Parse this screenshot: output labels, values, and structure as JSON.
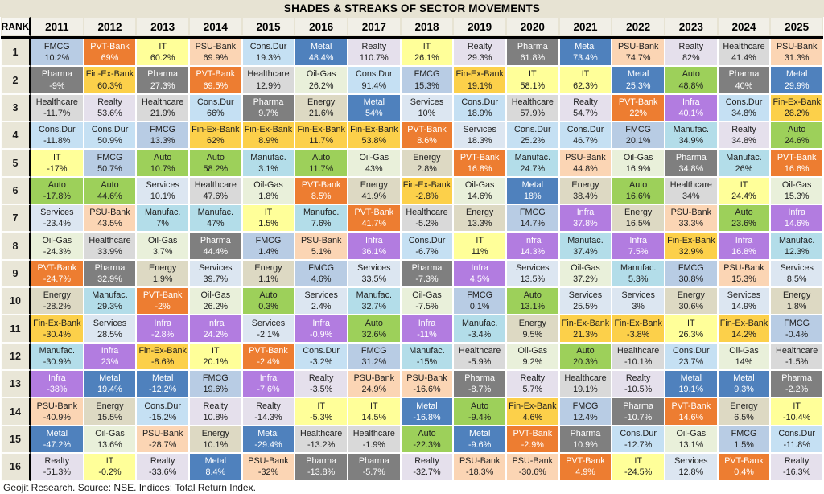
{
  "title": "SHADES & STREAKS OF SECTOR MOVEMENTS",
  "footer": "Geojit Research. Source: NSE. Indices: Total Return Index.",
  "chart_data": {
    "type": "heatmap",
    "description": "Periodic-table style ranking of Indian sector total returns by calendar year; rank 1 (best) to 16 (worst).",
    "rank_header": "RANK",
    "years": [
      "2011",
      "2012",
      "2013",
      "2014",
      "2015",
      "2016",
      "2017",
      "2018",
      "2019",
      "2020",
      "2021",
      "2022",
      "2023",
      "2024",
      "2025"
    ],
    "sector_colors": {
      "FMCG": {
        "bg": "#b8cce4",
        "fg": "#212121"
      },
      "PVT-Bank": {
        "bg": "#ed7d31",
        "fg": "#ffffff"
      },
      "IT": {
        "bg": "#ffff99",
        "fg": "#212121"
      },
      "PSU-Bank": {
        "bg": "#fbd5b4",
        "fg": "#212121"
      },
      "Cons.Dur": {
        "bg": "#c5e0f3",
        "fg": "#212121"
      },
      "Metal": {
        "bg": "#4f81bd",
        "fg": "#ffffff"
      },
      "Realty": {
        "bg": "#e5e0ec",
        "fg": "#212121"
      },
      "Pharma": {
        "bg": "#7f7f7f",
        "fg": "#ffffff"
      },
      "Healthcare": {
        "bg": "#d9d9d9",
        "fg": "#212121"
      },
      "Services": {
        "bg": "#dce6f1",
        "fg": "#212121"
      },
      "Energy": {
        "bg": "#ddd9c3",
        "fg": "#212121"
      },
      "Auto": {
        "bg": "#9dd05a",
        "fg": "#212121"
      },
      "Oil-Gas": {
        "bg": "#e9f0da",
        "fg": "#212121"
      },
      "Fin-Ex-Bank": {
        "bg": "#fcd04a",
        "fg": "#212121"
      },
      "Manufac.": {
        "bg": "#b3dde9",
        "fg": "#212121"
      },
      "Infra": {
        "bg": "#b27ce0",
        "fg": "#ffffff"
      }
    },
    "rows": [
      {
        "rank": "1",
        "cells": [
          [
            "FMCG",
            "10.2%"
          ],
          [
            "PVT-Bank",
            "69%"
          ],
          [
            "IT",
            "60.2%"
          ],
          [
            "PSU-Bank",
            "69.9%"
          ],
          [
            "Cons.Dur",
            "19.3%"
          ],
          [
            "Metal",
            "48.4%"
          ],
          [
            "Realty",
            "110.7%"
          ],
          [
            "IT",
            "26.1%"
          ],
          [
            "Realty",
            "29.3%"
          ],
          [
            "Pharma",
            "61.8%"
          ],
          [
            "Metal",
            "73.4%"
          ],
          [
            "PSU-Bank",
            "74.7%"
          ],
          [
            "Realty",
            "82%"
          ],
          [
            "Healthcare",
            "41.4%"
          ],
          [
            "PSU-Bank",
            "31.3%"
          ]
        ]
      },
      {
        "rank": "2",
        "cells": [
          [
            "Pharma",
            "-9%"
          ],
          [
            "Fin-Ex-Bank",
            "60.3%"
          ],
          [
            "Pharma",
            "27.3%"
          ],
          [
            "PVT-Bank",
            "69.5%"
          ],
          [
            "Healthcare",
            "12.9%"
          ],
          [
            "Oil-Gas",
            "26.2%"
          ],
          [
            "Cons.Dur",
            "91.4%"
          ],
          [
            "FMCG",
            "15.3%"
          ],
          [
            "Fin-Ex-Bank",
            "19.1%"
          ],
          [
            "IT",
            "58.1%"
          ],
          [
            "IT",
            "62.3%"
          ],
          [
            "Metal",
            "25.3%"
          ],
          [
            "Auto",
            "48.8%"
          ],
          [
            "Pharma",
            "40%"
          ],
          [
            "Metal",
            "29.9%"
          ]
        ]
      },
      {
        "rank": "3",
        "cells": [
          [
            "Healthcare",
            "-11.7%"
          ],
          [
            "Realty",
            "53.6%"
          ],
          [
            "Healthcare",
            "21.9%"
          ],
          [
            "Cons.Dur",
            "66%"
          ],
          [
            "Pharma",
            "9.7%"
          ],
          [
            "Energy",
            "21.6%"
          ],
          [
            "Metal",
            "54%"
          ],
          [
            "Services",
            "10%"
          ],
          [
            "Cons.Dur",
            "18.9%"
          ],
          [
            "Healthcare",
            "57.9%"
          ],
          [
            "Realty",
            "54.7%"
          ],
          [
            "PVT-Bank",
            "22%"
          ],
          [
            "Infra",
            "40.1%"
          ],
          [
            "Cons.Dur",
            "34.8%"
          ],
          [
            "Fin-Ex-Bank",
            "28.2%"
          ]
        ]
      },
      {
        "rank": "4",
        "cells": [
          [
            "Cons.Dur",
            "-11.8%"
          ],
          [
            "Cons.Dur",
            "50.9%"
          ],
          [
            "FMCG",
            "13.3%"
          ],
          [
            "Fin-Ex-Bank",
            "62%"
          ],
          [
            "Fin-Ex-Bank",
            "8.9%"
          ],
          [
            "Fin-Ex-Bank",
            "11.7%"
          ],
          [
            "Fin-Ex-Bank",
            "53.8%"
          ],
          [
            "PVT-Bank",
            "8.6%"
          ],
          [
            "Services",
            "18.3%"
          ],
          [
            "Cons.Dur",
            "25.2%"
          ],
          [
            "Cons.Dur",
            "46.7%"
          ],
          [
            "FMCG",
            "20.1%"
          ],
          [
            "Manufac.",
            "34.9%"
          ],
          [
            "Realty",
            "34.8%"
          ],
          [
            "Auto",
            "24.6%"
          ]
        ]
      },
      {
        "rank": "5",
        "cells": [
          [
            "IT",
            "-17%"
          ],
          [
            "FMCG",
            "50.7%"
          ],
          [
            "Auto",
            "10.7%"
          ],
          [
            "Auto",
            "58.2%"
          ],
          [
            "Manufac.",
            "3.1%"
          ],
          [
            "Auto",
            "11.7%"
          ],
          [
            "Oil-Gas",
            "43%"
          ],
          [
            "Energy",
            "2.8%"
          ],
          [
            "PVT-Bank",
            "16.8%"
          ],
          [
            "Manufac.",
            "24.7%"
          ],
          [
            "PSU-Bank",
            "44.8%"
          ],
          [
            "Oil-Gas",
            "16.9%"
          ],
          [
            "Pharma",
            "34.8%"
          ],
          [
            "Manufac.",
            "26%"
          ],
          [
            "PVT-Bank",
            "16.6%"
          ]
        ]
      },
      {
        "rank": "6",
        "cells": [
          [
            "Auto",
            "-17.8%"
          ],
          [
            "Auto",
            "44.6%"
          ],
          [
            "Services",
            "10.1%"
          ],
          [
            "Healthcare",
            "47.6%"
          ],
          [
            "Oil-Gas",
            "1.8%"
          ],
          [
            "PVT-Bank",
            "8.5%"
          ],
          [
            "Energy",
            "41.9%"
          ],
          [
            "Fin-Ex-Bank",
            "-2.8%"
          ],
          [
            "Oil-Gas",
            "14.6%"
          ],
          [
            "Metal",
            "18%"
          ],
          [
            "Energy",
            "38.4%"
          ],
          [
            "Auto",
            "16.6%"
          ],
          [
            "Healthcare",
            "34%"
          ],
          [
            "IT",
            "24.4%"
          ],
          [
            "Oil-Gas",
            "15.3%"
          ]
        ]
      },
      {
        "rank": "7",
        "cells": [
          [
            "Services",
            "-23.4%"
          ],
          [
            "PSU-Bank",
            "43.5%"
          ],
          [
            "Manufac.",
            "7%"
          ],
          [
            "Manufac.",
            "47%"
          ],
          [
            "IT",
            "1.5%"
          ],
          [
            "Manufac.",
            "7.6%"
          ],
          [
            "PVT-Bank",
            "41.7%"
          ],
          [
            "Healthcare",
            "-5.2%"
          ],
          [
            "Energy",
            "13.3%"
          ],
          [
            "FMCG",
            "14.7%"
          ],
          [
            "Infra",
            "37.8%"
          ],
          [
            "Energy",
            "16.5%"
          ],
          [
            "PSU-Bank",
            "33.3%"
          ],
          [
            "Auto",
            "23.6%"
          ],
          [
            "Infra",
            "14.6%"
          ]
        ]
      },
      {
        "rank": "8",
        "cells": [
          [
            "Oil-Gas",
            "-24.3%"
          ],
          [
            "Healthcare",
            "33.9%"
          ],
          [
            "Oil-Gas",
            "3.7%"
          ],
          [
            "Pharma",
            "44.4%"
          ],
          [
            "FMCG",
            "1.4%"
          ],
          [
            "PSU-Bank",
            "5.1%"
          ],
          [
            "Infra",
            "36.1%"
          ],
          [
            "Cons.Dur",
            "-6.7%"
          ],
          [
            "IT",
            "11%"
          ],
          [
            "Infra",
            "14.3%"
          ],
          [
            "Manufac.",
            "37.4%"
          ],
          [
            "Infra",
            "7.5%"
          ],
          [
            "Fin-Ex-Bank",
            "32.9%"
          ],
          [
            "Infra",
            "16.8%"
          ],
          [
            "Manufac.",
            "12.3%"
          ]
        ]
      },
      {
        "rank": "9",
        "cells": [
          [
            "PVT-Bank",
            "-24.7%"
          ],
          [
            "Pharma",
            "32.9%"
          ],
          [
            "Energy",
            "1.9%"
          ],
          [
            "Services",
            "39.7%"
          ],
          [
            "Energy",
            "1.1%"
          ],
          [
            "FMCG",
            "4.6%"
          ],
          [
            "Services",
            "33.5%"
          ],
          [
            "Pharma",
            "-7.3%"
          ],
          [
            "Infra",
            "4.5%"
          ],
          [
            "Services",
            "13.5%"
          ],
          [
            "Oil-Gas",
            "37.2%"
          ],
          [
            "Manufac.",
            "5.3%"
          ],
          [
            "FMCG",
            "30.8%"
          ],
          [
            "PSU-Bank",
            "15.3%"
          ],
          [
            "Services",
            "8.5%"
          ]
        ]
      },
      {
        "rank": "10",
        "cells": [
          [
            "Energy",
            "-28.2%"
          ],
          [
            "Manufac.",
            "29.3%"
          ],
          [
            "PVT-Bank",
            "-2%"
          ],
          [
            "Oil-Gas",
            "26.2%"
          ],
          [
            "Auto",
            "0.3%"
          ],
          [
            "Services",
            "2.4%"
          ],
          [
            "Manufac.",
            "32.7%"
          ],
          [
            "Oil-Gas",
            "-7.5%"
          ],
          [
            "FMCG",
            "0.1%"
          ],
          [
            "Auto",
            "13.1%"
          ],
          [
            "Services",
            "25.5%"
          ],
          [
            "Services",
            "3%"
          ],
          [
            "Energy",
            "30.6%"
          ],
          [
            "Services",
            "14.9%"
          ],
          [
            "Energy",
            "1.8%"
          ]
        ]
      },
      {
        "rank": "11",
        "cells": [
          [
            "Fin-Ex-Bank",
            "-30.4%"
          ],
          [
            "Services",
            "28.5%"
          ],
          [
            "Infra",
            "-2.8%"
          ],
          [
            "Infra",
            "24.2%"
          ],
          [
            "Services",
            "-2.1%"
          ],
          [
            "Infra",
            "-0.9%"
          ],
          [
            "Auto",
            "32.6%"
          ],
          [
            "Infra",
            "-11%"
          ],
          [
            "Manufac.",
            "-3.4%"
          ],
          [
            "Energy",
            "9.5%"
          ],
          [
            "Fin-Ex-Bank",
            "21.3%"
          ],
          [
            "Fin-Ex-Bank",
            "-3.8%"
          ],
          [
            "IT",
            "26.3%"
          ],
          [
            "Fin-Ex-Bank",
            "14.2%"
          ],
          [
            "FMCG",
            "-0.4%"
          ]
        ]
      },
      {
        "rank": "12",
        "cells": [
          [
            "Manufac.",
            "-30.9%"
          ],
          [
            "Infra",
            "23%"
          ],
          [
            "Fin-Ex-Bank",
            "-8.6%"
          ],
          [
            "IT",
            "20.1%"
          ],
          [
            "PVT-Bank",
            "-2.4%"
          ],
          [
            "Cons.Dur",
            "-3.2%"
          ],
          [
            "FMCG",
            "31.2%"
          ],
          [
            "Manufac.",
            "-15%"
          ],
          [
            "Healthcare",
            "-5.9%"
          ],
          [
            "Oil-Gas",
            "9.2%"
          ],
          [
            "Auto",
            "20.3%"
          ],
          [
            "Healthcare",
            "-10.1%"
          ],
          [
            "Cons.Dur",
            "23.7%"
          ],
          [
            "Oil-Gas",
            "14%"
          ],
          [
            "Healthcare",
            "-1.5%"
          ]
        ]
      },
      {
        "rank": "13",
        "cells": [
          [
            "Infra",
            "-38%"
          ],
          [
            "Metal",
            "19.4%"
          ],
          [
            "Metal",
            "-12.2%"
          ],
          [
            "FMCG",
            "19.6%"
          ],
          [
            "Infra",
            "-7.6%"
          ],
          [
            "Realty",
            "-3.5%"
          ],
          [
            "PSU-Bank",
            "24.9%"
          ],
          [
            "PSU-Bank",
            "-16.6%"
          ],
          [
            "Pharma",
            "-8.7%"
          ],
          [
            "Realty",
            "5.7%"
          ],
          [
            "Healthcare",
            "19.1%"
          ],
          [
            "Realty",
            "-10.5%"
          ],
          [
            "Metal",
            "19.1%"
          ],
          [
            "Metal",
            "9.3%"
          ],
          [
            "Pharma",
            "-2.2%"
          ]
        ]
      },
      {
        "rank": "14",
        "cells": [
          [
            "PSU-Bank",
            "-40.9%"
          ],
          [
            "Energy",
            "15.5%"
          ],
          [
            "Cons.Dur",
            "-15.2%"
          ],
          [
            "Realty",
            "10.8%"
          ],
          [
            "Realty",
            "-14.3%"
          ],
          [
            "IT",
            "-5.3%"
          ],
          [
            "IT",
            "14.5%"
          ],
          [
            "Metal",
            "-16.8%"
          ],
          [
            "Auto",
            "-9.4%"
          ],
          [
            "Fin-Ex-Bank",
            "4.6%"
          ],
          [
            "FMCG",
            "12.4%"
          ],
          [
            "Pharma",
            "-10.7%"
          ],
          [
            "PVT-Bank",
            "14.6%"
          ],
          [
            "Energy",
            "6.5%"
          ],
          [
            "IT",
            "-10.4%"
          ]
        ]
      },
      {
        "rank": "15",
        "cells": [
          [
            "Metal",
            "-47.2%"
          ],
          [
            "Oil-Gas",
            "13.6%"
          ],
          [
            "PSU-Bank",
            "-28.7%"
          ],
          [
            "Energy",
            "10.1%"
          ],
          [
            "Metal",
            "-29.4%"
          ],
          [
            "Healthcare",
            "-13.2%"
          ],
          [
            "Healthcare",
            "-1.9%"
          ],
          [
            "Auto",
            "-22.3%"
          ],
          [
            "Metal",
            "-9.6%"
          ],
          [
            "PVT-Bank",
            "-2.9%"
          ],
          [
            "Pharma",
            "10.9%"
          ],
          [
            "Cons.Dur",
            "-12.7%"
          ],
          [
            "Oil-Gas",
            "13.1%"
          ],
          [
            "FMCG",
            "1.5%"
          ],
          [
            "Cons.Dur",
            "-11.8%"
          ]
        ]
      },
      {
        "rank": "16",
        "cells": [
          [
            "Realty",
            "-51.3%"
          ],
          [
            "IT",
            "-0.2%"
          ],
          [
            "Realty",
            "-33.6%"
          ],
          [
            "Metal",
            "8.4%"
          ],
          [
            "PSU-Bank",
            "-32%"
          ],
          [
            "Pharma",
            "-13.8%"
          ],
          [
            "Pharma",
            "-5.7%"
          ],
          [
            "Realty",
            "-32.7%"
          ],
          [
            "PSU-Bank",
            "-18.3%"
          ],
          [
            "PSU-Bank",
            "-30.6%"
          ],
          [
            "PVT-Bank",
            "4.9%"
          ],
          [
            "IT",
            "-24.5%"
          ],
          [
            "Services",
            "12.8%"
          ],
          [
            "PVT-Bank",
            "0.4%"
          ],
          [
            "Realty",
            "-16.3%"
          ]
        ]
      }
    ]
  }
}
